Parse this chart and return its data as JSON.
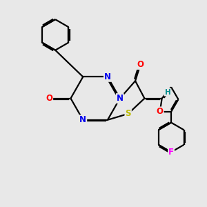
{
  "bg_color": "#e8e8e8",
  "atom_colors": {
    "C": "#000000",
    "N": "#0000ee",
    "O": "#ff0000",
    "S": "#bbbb00",
    "F": "#ff00ff",
    "H": "#008b8b"
  },
  "lw": 1.6,
  "fs": 8.5,
  "doff": 0.055
}
